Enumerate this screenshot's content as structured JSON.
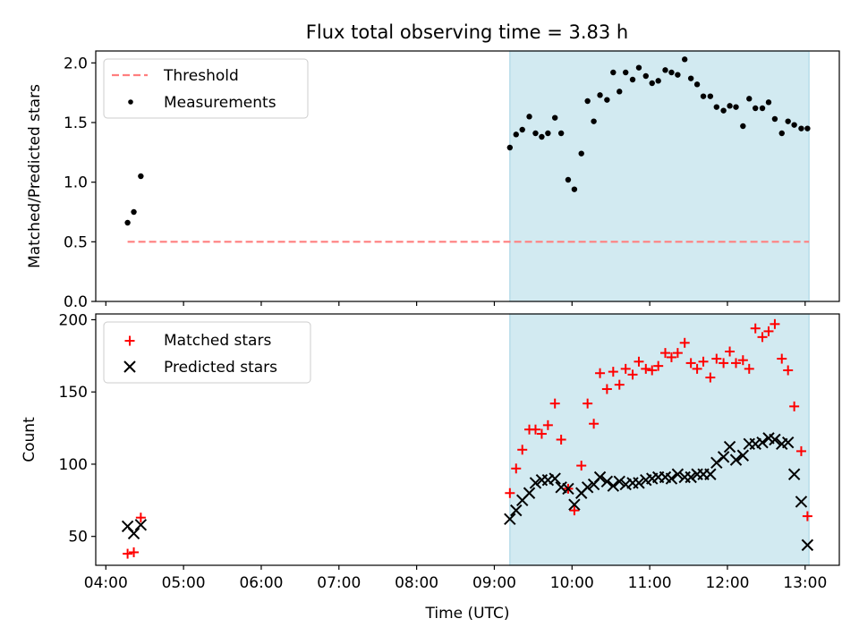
{
  "figure": {
    "title": "Flux total observing time = 3.83 h",
    "xlabel": "Time (UTC)",
    "x_ticks": [
      "04:00",
      "05:00",
      "06:00",
      "07:00",
      "08:00",
      "09:00",
      "10:00",
      "11:00",
      "12:00",
      "13:00"
    ],
    "x_tick_hours": [
      4,
      5,
      6,
      7,
      8,
      9,
      10,
      11,
      12,
      13
    ],
    "xlim_hours": [
      3.87,
      13.44
    ],
    "shaded_span_hours": [
      9.2,
      13.05
    ]
  },
  "colors": {
    "shade": "#add8e6",
    "threshold": "#ff7f7f",
    "measurement": "#000000",
    "matched": "#ff0000",
    "predicted": "#000000"
  },
  "chart_data": [
    {
      "type": "scatter",
      "ylabel": "Matched/Predicted stars",
      "ylim": [
        0.0,
        2.1
      ],
      "y_ticks": [
        "0.0",
        "0.5",
        "1.0",
        "1.5",
        "2.0"
      ],
      "y_tick_values": [
        0.0,
        0.5,
        1.0,
        1.5,
        2.0
      ],
      "legend": [
        "Threshold",
        "Measurements"
      ],
      "threshold": {
        "name": "Threshold",
        "value": 0.5,
        "x_range": [
          4.28,
          13.05
        ]
      },
      "series": [
        {
          "name": "Measurements",
          "x": [
            4.28,
            4.36,
            4.45,
            9.2,
            9.28,
            9.36,
            9.45,
            9.53,
            9.61,
            9.69,
            9.78,
            9.86,
            9.95,
            10.03,
            10.12,
            10.2,
            10.28,
            10.36,
            10.45,
            10.53,
            10.61,
            10.69,
            10.78,
            10.86,
            10.95,
            11.03,
            11.11,
            11.2,
            11.28,
            11.36,
            11.45,
            11.53,
            11.61,
            11.69,
            11.78,
            11.86,
            11.95,
            12.03,
            12.11,
            12.2,
            12.28,
            12.36,
            12.45,
            12.53,
            12.61,
            12.7,
            12.78,
            12.86,
            12.95,
            13.03
          ],
          "y": [
            0.66,
            0.75,
            1.05,
            1.29,
            1.4,
            1.44,
            1.55,
            1.41,
            1.38,
            1.41,
            1.54,
            1.41,
            1.02,
            0.94,
            1.24,
            1.68,
            1.51,
            1.73,
            1.69,
            1.92,
            1.76,
            1.92,
            1.86,
            1.96,
            1.89,
            1.83,
            1.85,
            1.94,
            1.92,
            1.9,
            2.03,
            1.87,
            1.82,
            1.72,
            1.72,
            1.63,
            1.6,
            1.64,
            1.63,
            1.47,
            1.7,
            1.62,
            1.62,
            1.67,
            1.53,
            1.41,
            1.51,
            1.48,
            1.45,
            1.45
          ]
        }
      ]
    },
    {
      "type": "scatter",
      "ylabel": "Count",
      "ylim": [
        30,
        204
      ],
      "y_ticks": [
        "50",
        "100",
        "150",
        "200"
      ],
      "y_tick_values": [
        50,
        100,
        150,
        200
      ],
      "legend": [
        "Matched stars",
        "Predicted stars"
      ],
      "series": [
        {
          "name": "Matched stars",
          "marker": "+",
          "x": [
            4.28,
            4.36,
            4.45,
            9.2,
            9.28,
            9.36,
            9.45,
            9.53,
            9.61,
            9.69,
            9.78,
            9.86,
            9.95,
            10.03,
            10.12,
            10.2,
            10.28,
            10.36,
            10.45,
            10.53,
            10.61,
            10.69,
            10.78,
            10.86,
            10.95,
            11.03,
            11.11,
            11.2,
            11.28,
            11.36,
            11.45,
            11.53,
            11.61,
            11.69,
            11.78,
            11.86,
            11.95,
            12.03,
            12.11,
            12.2,
            12.28,
            12.36,
            12.45,
            12.53,
            12.61,
            12.7,
            12.78,
            12.86,
            12.95,
            13.03
          ],
          "y": [
            38,
            39,
            63,
            80,
            97,
            110,
            124,
            124,
            121,
            127,
            142,
            117,
            83,
            68,
            99,
            142,
            128,
            163,
            152,
            164,
            155,
            166,
            162,
            171,
            166,
            165,
            168,
            177,
            174,
            177,
            184,
            170,
            166,
            171,
            160,
            173,
            170,
            178,
            170,
            172,
            166,
            194,
            188,
            192,
            197,
            173,
            165,
            140,
            109,
            64
          ]
        },
        {
          "name": "Predicted stars",
          "marker": "x",
          "x": [
            4.28,
            4.36,
            4.45,
            9.2,
            9.28,
            9.36,
            9.45,
            9.53,
            9.61,
            9.69,
            9.78,
            9.86,
            9.95,
            10.03,
            10.12,
            10.2,
            10.28,
            10.36,
            10.45,
            10.53,
            10.61,
            10.69,
            10.78,
            10.86,
            10.95,
            11.03,
            11.11,
            11.2,
            11.28,
            11.36,
            11.45,
            11.53,
            11.61,
            11.69,
            11.78,
            11.86,
            11.95,
            12.03,
            12.11,
            12.2,
            12.28,
            12.36,
            12.45,
            12.53,
            12.61,
            12.7,
            12.78,
            12.86,
            12.95,
            13.03
          ],
          "y": [
            57,
            52,
            58,
            62,
            68,
            75,
            80,
            87,
            89,
            89,
            90,
            84,
            83,
            72,
            80,
            84,
            86,
            91,
            88,
            85,
            88,
            86,
            87,
            87,
            89,
            90,
            91,
            91,
            90,
            93,
            91,
            91,
            93,
            93,
            93,
            101,
            105,
            112,
            103,
            106,
            114,
            114,
            115,
            118,
            117,
            114,
            115,
            93,
            74,
            44
          ]
        }
      ]
    }
  ]
}
